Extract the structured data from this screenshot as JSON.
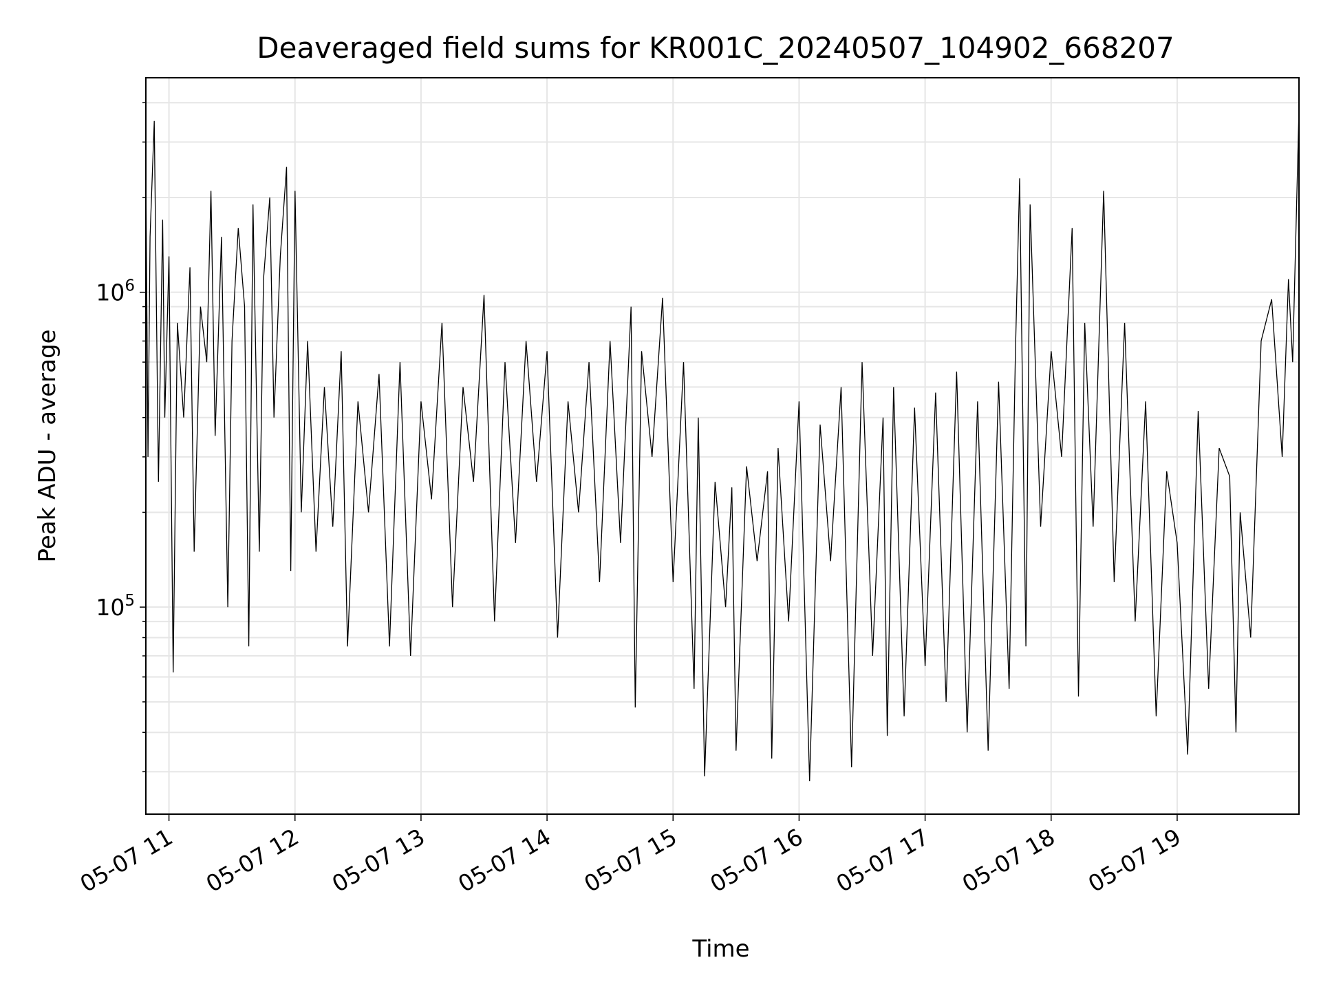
{
  "chart_data": {
    "type": "line",
    "title": "Deaveraged field sums for KR001C_20240507_104902_668207",
    "xlabel": "Time",
    "ylabel": "Peak ADU - average",
    "x_scale": "time",
    "y_scale": "log",
    "xlim": [
      "2024-05-07 10:49",
      "2024-05-07 19:58"
    ],
    "ylim": [
      22000,
      4800000
    ],
    "grid": true,
    "legend": "none",
    "x_ticks": [
      "05-07 11",
      "05-07 12",
      "05-07 13",
      "05-07 14",
      "05-07 15",
      "05-07 16",
      "05-07 17",
      "05-07 18",
      "05-07 19"
    ],
    "y_ticks": [
      {
        "value": 100000,
        "base": "10",
        "exp": "5"
      },
      {
        "value": 1000000,
        "base": "10",
        "exp": "6"
      }
    ],
    "line_color": "#000000",
    "series": [
      {
        "x": [
          "10:49",
          "10:50",
          "10:51",
          "10:53",
          "10:55",
          "10:57",
          "10:58",
          "11:00",
          "11:02",
          "11:04",
          "11:07",
          "11:10",
          "11:12",
          "11:15",
          "11:18",
          "11:20",
          "11:22",
          "11:25",
          "11:28",
          "11:30",
          "11:33",
          "11:36",
          "11:38",
          "11:40",
          "11:43",
          "11:45",
          "11:48",
          "11:50",
          "11:53",
          "11:56",
          "11:58",
          "12:00",
          "12:03",
          "12:06",
          "12:10",
          "12:14",
          "12:18",
          "12:22",
          "12:25",
          "12:30",
          "12:35",
          "12:40",
          "12:45",
          "12:50",
          "12:55",
          "13:00",
          "13:05",
          "13:10",
          "13:15",
          "13:20",
          "13:25",
          "13:30",
          "13:35",
          "13:40",
          "13:45",
          "13:50",
          "13:55",
          "14:00",
          "14:05",
          "14:10",
          "14:15",
          "14:20",
          "14:25",
          "14:30",
          "14:35",
          "14:40",
          "14:42",
          "14:45",
          "14:50",
          "14:55",
          "15:00",
          "15:05",
          "15:10",
          "15:12",
          "15:15",
          "15:20",
          "15:25",
          "15:28",
          "15:30",
          "15:35",
          "15:40",
          "15:45",
          "15:47",
          "15:50",
          "15:55",
          "16:00",
          "16:05",
          "16:10",
          "16:15",
          "16:20",
          "16:25",
          "16:30",
          "16:35",
          "16:40",
          "16:42",
          "16:45",
          "16:50",
          "16:55",
          "17:00",
          "17:05",
          "17:10",
          "17:15",
          "17:20",
          "17:25",
          "17:30",
          "17:35",
          "17:40",
          "17:43",
          "17:45",
          "17:48",
          "17:50",
          "17:55",
          "18:00",
          "18:05",
          "18:10",
          "18:13",
          "18:16",
          "18:20",
          "18:25",
          "18:30",
          "18:35",
          "18:40",
          "18:45",
          "18:50",
          "18:55",
          "19:00",
          "19:05",
          "19:10",
          "19:15",
          "19:20",
          "19:25",
          "19:28",
          "19:30",
          "19:35",
          "19:40",
          "19:45",
          "19:50",
          "19:53",
          "19:55",
          "19:58"
        ],
        "values": [
          2400000,
          300000,
          1500000,
          3500000,
          250000,
          1700000,
          400000,
          1300000,
          62000,
          800000,
          400000,
          1200000,
          150000,
          900000,
          600000,
          2100000,
          350000,
          1500000,
          100000,
          700000,
          1600000,
          900000,
          75000,
          1900000,
          150000,
          1100000,
          2000000,
          400000,
          1300000,
          2500000,
          130000,
          2100000,
          200000,
          700000,
          150000,
          500000,
          180000,
          650000,
          75000,
          450000,
          200000,
          550000,
          75000,
          600000,
          70000,
          450000,
          220000,
          800000,
          100000,
          500000,
          250000,
          980000,
          90000,
          600000,
          160000,
          700000,
          250000,
          650000,
          80000,
          450000,
          200000,
          600000,
          120000,
          700000,
          160000,
          900000,
          48000,
          650000,
          300000,
          960000,
          120000,
          600000,
          55000,
          400000,
          29000,
          250000,
          100000,
          240000,
          35000,
          280000,
          140000,
          270000,
          33000,
          320000,
          90000,
          450000,
          28000,
          380000,
          140000,
          500000,
          31000,
          600000,
          70000,
          400000,
          39000,
          500000,
          45000,
          430000,
          65000,
          480000,
          50000,
          560000,
          40000,
          450000,
          35000,
          520000,
          55000,
          650000,
          2300000,
          75000,
          1900000,
          180000,
          650000,
          300000,
          1600000,
          52000,
          800000,
          180000,
          2100000,
          120000,
          800000,
          90000,
          450000,
          45000,
          270000,
          160000,
          34000,
          420000,
          55000,
          320000,
          260000,
          40000,
          200000,
          80000,
          700000,
          950000,
          300000,
          1100000,
          600000,
          3800000
        ]
      }
    ]
  }
}
